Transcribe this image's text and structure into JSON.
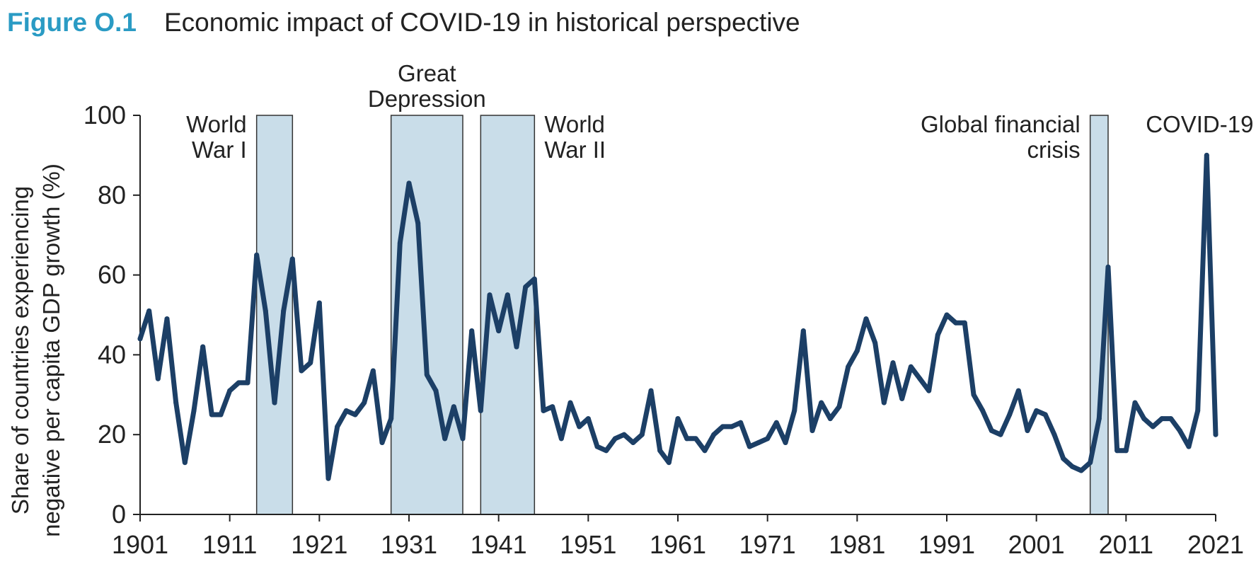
{
  "figure": {
    "label": "Figure O.1",
    "title": "Economic impact of COVID-19 in historical perspective"
  },
  "colors": {
    "figure_label": "#2a9bc4",
    "line": "#1c3f66",
    "shade_fill": "#c9dde9",
    "shade_stroke": "#333333",
    "axis": "#222222",
    "text": "#222222"
  },
  "chart_data": {
    "type": "line",
    "title": "Economic impact of COVID-19 in historical perspective",
    "xlabel": "",
    "ylabel": [
      "Share of countries experiencing",
      "negative per capita GDP growth (%)"
    ],
    "xlim": [
      1901,
      2021
    ],
    "ylim": [
      0,
      100
    ],
    "grid": false,
    "x_ticks": [
      1901,
      1911,
      1921,
      1931,
      1941,
      1951,
      1961,
      1971,
      1981,
      1991,
      2001,
      2011,
      2021
    ],
    "y_ticks": [
      0,
      20,
      40,
      60,
      80,
      100
    ],
    "shaded_periods": [
      {
        "name": "world-war-1",
        "start": 1914,
        "end": 1918,
        "label": [
          "World",
          "War I"
        ],
        "label_side": "left"
      },
      {
        "name": "great-depression",
        "start": 1929,
        "end": 1937,
        "label": [
          "Great",
          "Depression"
        ],
        "label_side": "top"
      },
      {
        "name": "world-war-2",
        "start": 1939,
        "end": 1945,
        "label": [
          "World",
          "War II"
        ],
        "label_side": "right"
      },
      {
        "name": "global-financial-crisis",
        "start": 2007,
        "end": 2009,
        "label": [
          "Global financial",
          "crisis"
        ],
        "label_side": "left"
      }
    ],
    "annotations": [
      {
        "name": "covid-19",
        "text": "COVID-19",
        "x": 2020,
        "y": 100
      }
    ],
    "series": [
      {
        "name": "Share of countries with negative per capita GDP growth",
        "x": [
          1901,
          1902,
          1903,
          1904,
          1905,
          1906,
          1907,
          1908,
          1909,
          1910,
          1911,
          1912,
          1913,
          1914,
          1915,
          1916,
          1917,
          1918,
          1919,
          1920,
          1921,
          1922,
          1923,
          1924,
          1925,
          1926,
          1927,
          1928,
          1929,
          1930,
          1931,
          1932,
          1933,
          1934,
          1935,
          1936,
          1937,
          1938,
          1939,
          1940,
          1941,
          1942,
          1943,
          1944,
          1945,
          1946,
          1947,
          1948,
          1949,
          1950,
          1951,
          1952,
          1953,
          1954,
          1955,
          1956,
          1957,
          1958,
          1959,
          1960,
          1961,
          1962,
          1963,
          1964,
          1965,
          1966,
          1967,
          1968,
          1969,
          1970,
          1971,
          1972,
          1973,
          1974,
          1975,
          1976,
          1977,
          1978,
          1979,
          1980,
          1981,
          1982,
          1983,
          1984,
          1985,
          1986,
          1987,
          1988,
          1989,
          1990,
          1991,
          1992,
          1993,
          1994,
          1995,
          1996,
          1997,
          1998,
          1999,
          2000,
          2001,
          2002,
          2003,
          2004,
          2005,
          2006,
          2007,
          2008,
          2009,
          2010,
          2011,
          2012,
          2013,
          2014,
          2015,
          2016,
          2017,
          2018,
          2019,
          2020,
          2021
        ],
        "values": [
          44,
          51,
          34,
          49,
          28,
          13,
          26,
          42,
          25,
          25,
          31,
          33,
          33,
          65,
          51,
          28,
          51,
          64,
          36,
          38,
          53,
          9,
          22,
          26,
          25,
          28,
          36,
          18,
          24,
          68,
          83,
          73,
          35,
          31,
          19,
          27,
          19,
          46,
          26,
          55,
          46,
          55,
          42,
          57,
          59,
          26,
          27,
          19,
          28,
          22,
          24,
          17,
          16,
          19,
          20,
          18,
          20,
          31,
          16,
          13,
          24,
          19,
          19,
          16,
          20,
          22,
          22,
          23,
          17,
          18,
          19,
          23,
          18,
          26,
          46,
          21,
          28,
          24,
          27,
          37,
          41,
          49,
          43,
          28,
          38,
          29,
          37,
          34,
          31,
          45,
          50,
          48,
          48,
          30,
          26,
          21,
          20,
          25,
          31,
          21,
          26,
          25,
          20,
          14,
          12,
          11,
          13,
          24,
          62,
          16,
          16,
          28,
          24,
          22,
          24,
          24,
          21,
          17,
          26,
          90,
          20
        ]
      }
    ]
  }
}
